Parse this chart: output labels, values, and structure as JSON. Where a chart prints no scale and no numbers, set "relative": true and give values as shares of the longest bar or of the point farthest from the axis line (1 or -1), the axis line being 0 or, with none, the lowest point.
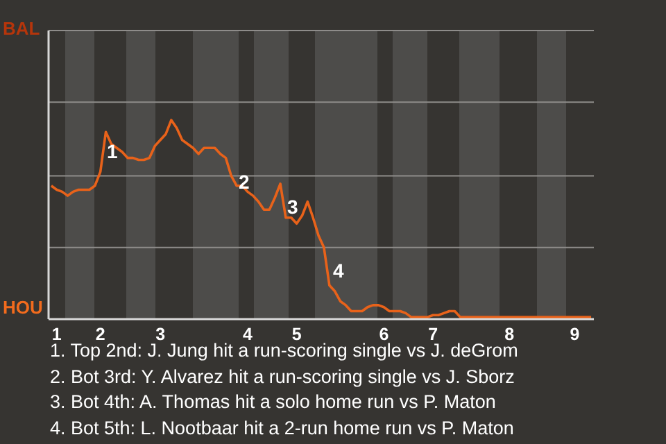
{
  "chart_data": {
    "type": "line",
    "relative": true,
    "categories": [
      null,
      "1",
      null,
      null,
      null,
      null,
      null,
      null,
      null,
      "2",
      null,
      null,
      null,
      null,
      null,
      null,
      null,
      null,
      null,
      null,
      "3",
      null,
      null,
      null,
      null,
      null,
      null,
      null,
      null,
      null,
      null,
      null,
      null,
      null,
      null,
      null,
      "4",
      null,
      null,
      null,
      null,
      null,
      null,
      null,
      null,
      "5",
      null,
      null,
      null,
      null,
      null,
      null,
      null,
      null,
      null,
      null,
      null,
      null,
      null,
      null,
      null,
      "6",
      null,
      null,
      null,
      null,
      null,
      null,
      null,
      null,
      "7",
      null,
      null,
      null,
      null,
      null,
      null,
      null,
      null,
      null,
      null,
      null,
      null,
      null,
      "8",
      null,
      null,
      null,
      null,
      null,
      null,
      null,
      null,
      null,
      null,
      null,
      "9",
      null,
      null,
      null
    ],
    "series": [
      {
        "color": "#e8621a",
        "values": [
          0.67,
          0.65,
          0.64,
          0.62,
          0.64,
          0.65,
          0.65,
          0.65,
          0.67,
          0.74,
          0.94,
          0.88,
          0.86,
          0.84,
          0.81,
          0.81,
          0.8,
          0.8,
          0.81,
          0.87,
          0.9,
          0.93,
          1,
          0.96,
          0.9,
          0.88,
          0.86,
          0.83,
          0.86,
          0.86,
          0.86,
          0.83,
          0.81,
          0.72,
          0.67,
          0.67,
          0.64,
          0.62,
          0.59,
          0.55,
          0.55,
          0.61,
          0.68,
          0.51,
          0.51,
          0.48,
          0.52,
          0.59,
          0.51,
          0.42,
          0.36,
          0.17,
          0.14,
          0.09,
          0.07,
          0.04,
          0.04,
          0.04,
          0.06,
          0.07,
          0.07,
          0.06,
          0.04,
          0.04,
          0.04,
          0.03,
          0.01,
          0.01,
          0.01,
          0.01,
          0.02,
          0.02,
          0.03,
          0.04,
          0.04,
          0.01,
          0.01,
          0.01,
          0.01,
          0.01,
          0.01,
          0.01,
          0.01,
          0.01,
          0.01,
          0.01,
          0.01,
          0.01,
          0.01,
          0.01,
          0.01,
          0.01,
          0.01,
          0.01,
          0.01,
          0.01,
          0.01,
          0.01,
          0.01,
          0.01
        ]
      }
    ],
    "marker": "none",
    "line_style": "solid",
    "ref_lines": [
      {
        "axis": "y",
        "value": 0.36,
        "color": "#8e8c8a"
      },
      {
        "axis": "y",
        "value": 0.72,
        "color": "#8e8c8a"
      },
      {
        "axis": "y",
        "value": 1.09,
        "color": "#8e8c8a"
      }
    ],
    "annotations": [
      "BAL",
      "HOU",
      "1",
      "2",
      "3",
      "4",
      "1. Top 2nd: J. Jung hit a run-scoring single vs J. deGrom",
      "2. Bot 3rd: Y. Alvarez hit a run-scoring single vs J. Sborz",
      "3. Bot 4th: A. Thomas hit a solo home run vs P. Maton",
      "4. Bot 5th: L. Nootbaar hit a 2-run home run vs P. Maton"
    ]
  }
}
